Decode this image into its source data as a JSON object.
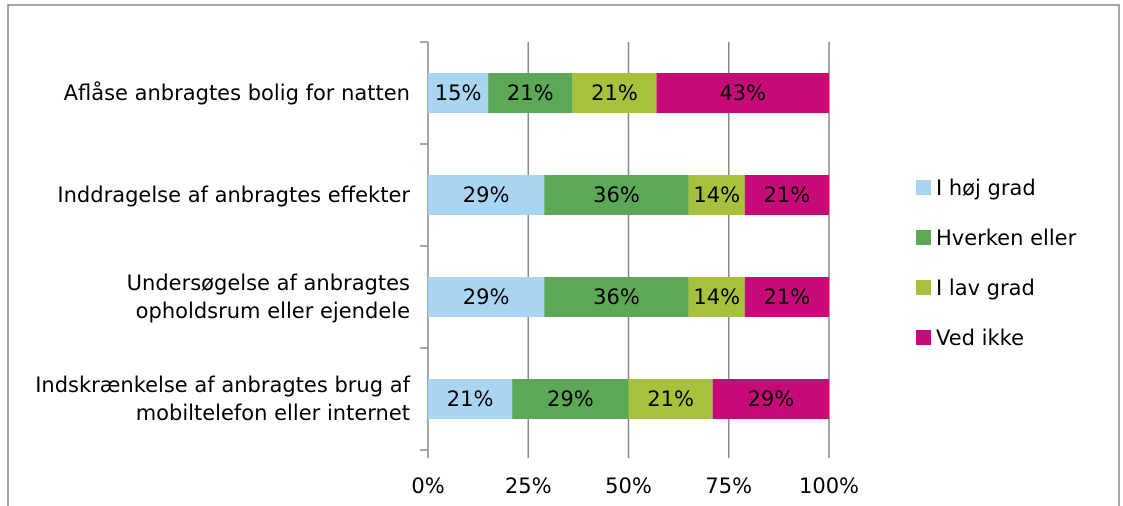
{
  "chart_data": {
    "type": "stacked_barh",
    "categories": [
      "Aflåse anbragtes bolig for natten",
      "Inddragelse af anbragtes effekter",
      "Undersøgelse af anbragtes opholdsrum eller ejendele",
      "Indskrænkelse af anbragtes brug af mobiltelefon eller internet"
    ],
    "series": [
      {
        "name": "I høj grad",
        "color": "#a9d4f2",
        "values": [
          15,
          29,
          29,
          21
        ],
        "value_labels": [
          "15%",
          "29%",
          "29%",
          "21%"
        ]
      },
      {
        "name": "Hverken eller",
        "color": "#5ca857",
        "values": [
          21,
          36,
          36,
          29
        ],
        "value_labels": [
          "21%",
          "36%",
          "36%",
          "29%"
        ]
      },
      {
        "name": "I lav grad",
        "color": "#a6c23c",
        "values": [
          21,
          14,
          14,
          21
        ],
        "value_labels": [
          "21%",
          "14%",
          "14%",
          "21%"
        ]
      },
      {
        "name": "Ved ikke",
        "color": "#c60b79",
        "values": [
          43,
          21,
          21,
          29
        ],
        "value_labels": [
          "43%",
          "21%",
          "21%",
          "29%"
        ]
      }
    ],
    "xlim": [
      0,
      100
    ],
    "xticks": [
      {
        "value": 0,
        "label": "0%"
      },
      {
        "value": 25,
        "label": "25%"
      },
      {
        "value": 50,
        "label": "50%"
      },
      {
        "value": 75,
        "label": "75%"
      },
      {
        "value": 100,
        "label": "100%"
      }
    ],
    "grid": true,
    "legend": "right"
  }
}
